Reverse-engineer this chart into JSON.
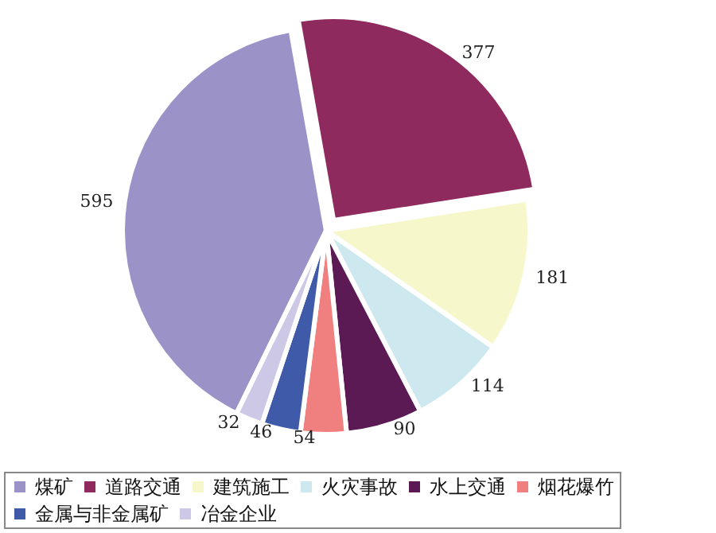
{
  "chart_data": {
    "type": "pie",
    "categories": [
      "煤矿",
      "道路交通",
      "建筑施工",
      "火灾事故",
      "水上交通",
      "烟花爆竹",
      "金属与非金属矿",
      "冶金企业"
    ],
    "values": [
      595,
      377,
      181,
      114,
      90,
      54,
      46,
      32
    ],
    "colors": [
      "#9b93c8",
      "#8e2a5e",
      "#f7f7cc",
      "#cde8ee",
      "#5c1a55",
      "#f07f7f",
      "#3f5aa8",
      "#ccc8e6"
    ],
    "data_labels": true,
    "legend": "bottom"
  }
}
